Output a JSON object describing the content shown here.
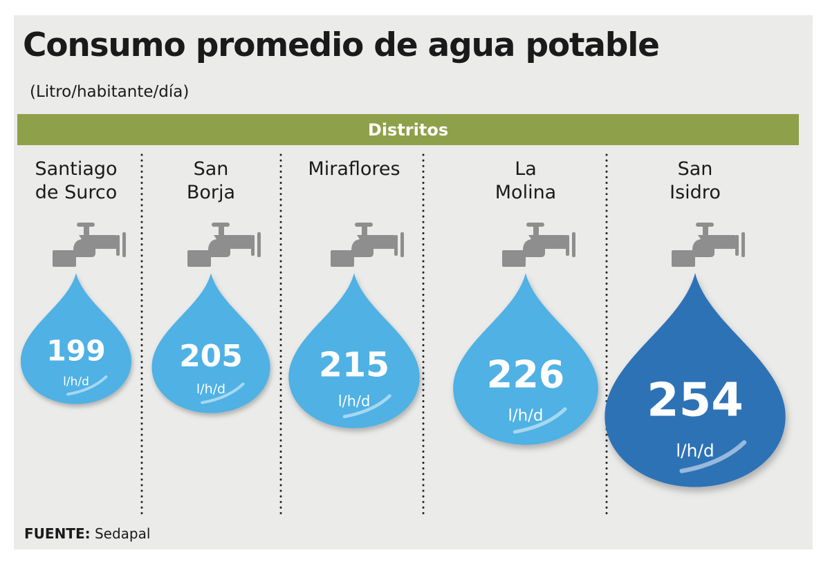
{
  "title": "Consumo promedio de agua potable",
  "subtitle": "(Litro/habitante/día)",
  "band_label": "Distritos",
  "source_label": "FUENTE:",
  "source_value": "Sedapal",
  "colors": {
    "drop_light": "#4fb1e4",
    "drop_highlight": "#2e72b6",
    "faucet": "#8e8e8e",
    "band": "#8fa04a"
  },
  "icons": [
    "faucet-icon",
    "water-drop-icon"
  ],
  "chart_data": {
    "type": "bar",
    "categories": [
      "Santiago de Surco",
      "San Borja",
      "Miraflores",
      "La Molina",
      "San Isidro"
    ],
    "category_lines": [
      [
        "Santiago",
        "de Surco"
      ],
      [
        "San",
        "Borja"
      ],
      [
        "Miraflores"
      ],
      [
        "La",
        "Molina"
      ],
      [
        "San",
        "Isidro"
      ]
    ],
    "values": [
      199,
      205,
      215,
      226,
      254
    ],
    "value_labels": [
      "199",
      "205",
      "215",
      "226",
      "254"
    ],
    "unit_label": "l/h/d",
    "highlight_category": "San Isidro",
    "legend": "none",
    "grid": false
  }
}
